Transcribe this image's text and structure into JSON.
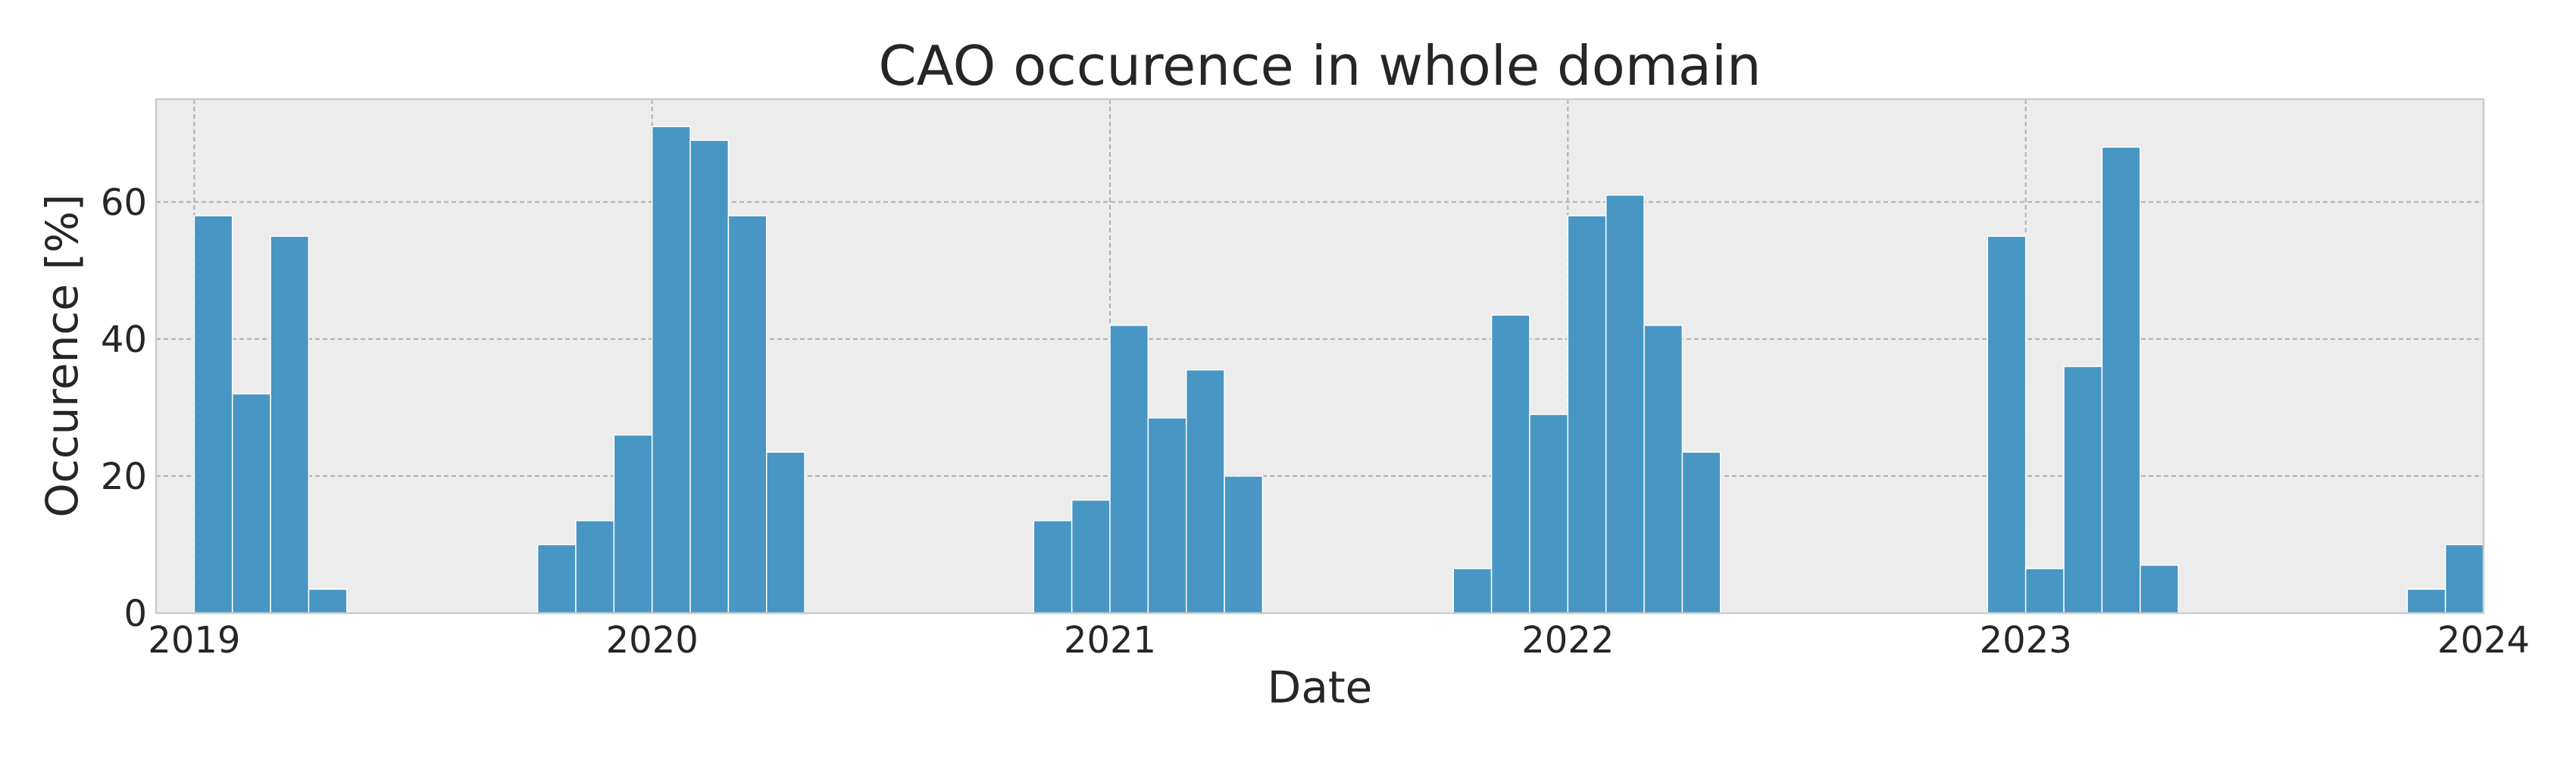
{
  "chart_data": {
    "type": "bar",
    "title": "CAO occurence in whole domain",
    "xlabel": "Date",
    "ylabel": "Occurence [%]",
    "xlim": [
      "2018-12",
      "2024-01"
    ],
    "ylim": [
      0,
      75
    ],
    "x_ticks": [
      "2019",
      "2020",
      "2021",
      "2022",
      "2023",
      "2024"
    ],
    "y_ticks": [
      0,
      20,
      40,
      60
    ],
    "grid": true,
    "bar_color": "#4896c4",
    "background": "#ececec",
    "categories": [
      "2019-01",
      "2019-02",
      "2019-03",
      "2019-04",
      "2019-10",
      "2019-11",
      "2019-12",
      "2020-01",
      "2020-02",
      "2020-03",
      "2020-04",
      "2020-11",
      "2020-12",
      "2021-01",
      "2021-02",
      "2021-03",
      "2021-04",
      "2021-10",
      "2021-11",
      "2021-12",
      "2022-01",
      "2022-02",
      "2022-03",
      "2022-04",
      "2022-12",
      "2023-01",
      "2023-02",
      "2023-03",
      "2023-04",
      "2023-11",
      "2023-12"
    ],
    "values": [
      58,
      32,
      55,
      3.5,
      10,
      13.5,
      26,
      71,
      69,
      58,
      23.5,
      13.5,
      16.5,
      42,
      28.5,
      35.5,
      20,
      6.5,
      43.5,
      29,
      58,
      61,
      42,
      23.5,
      55,
      6.5,
      36,
      68,
      7,
      3.5,
      10
    ]
  }
}
